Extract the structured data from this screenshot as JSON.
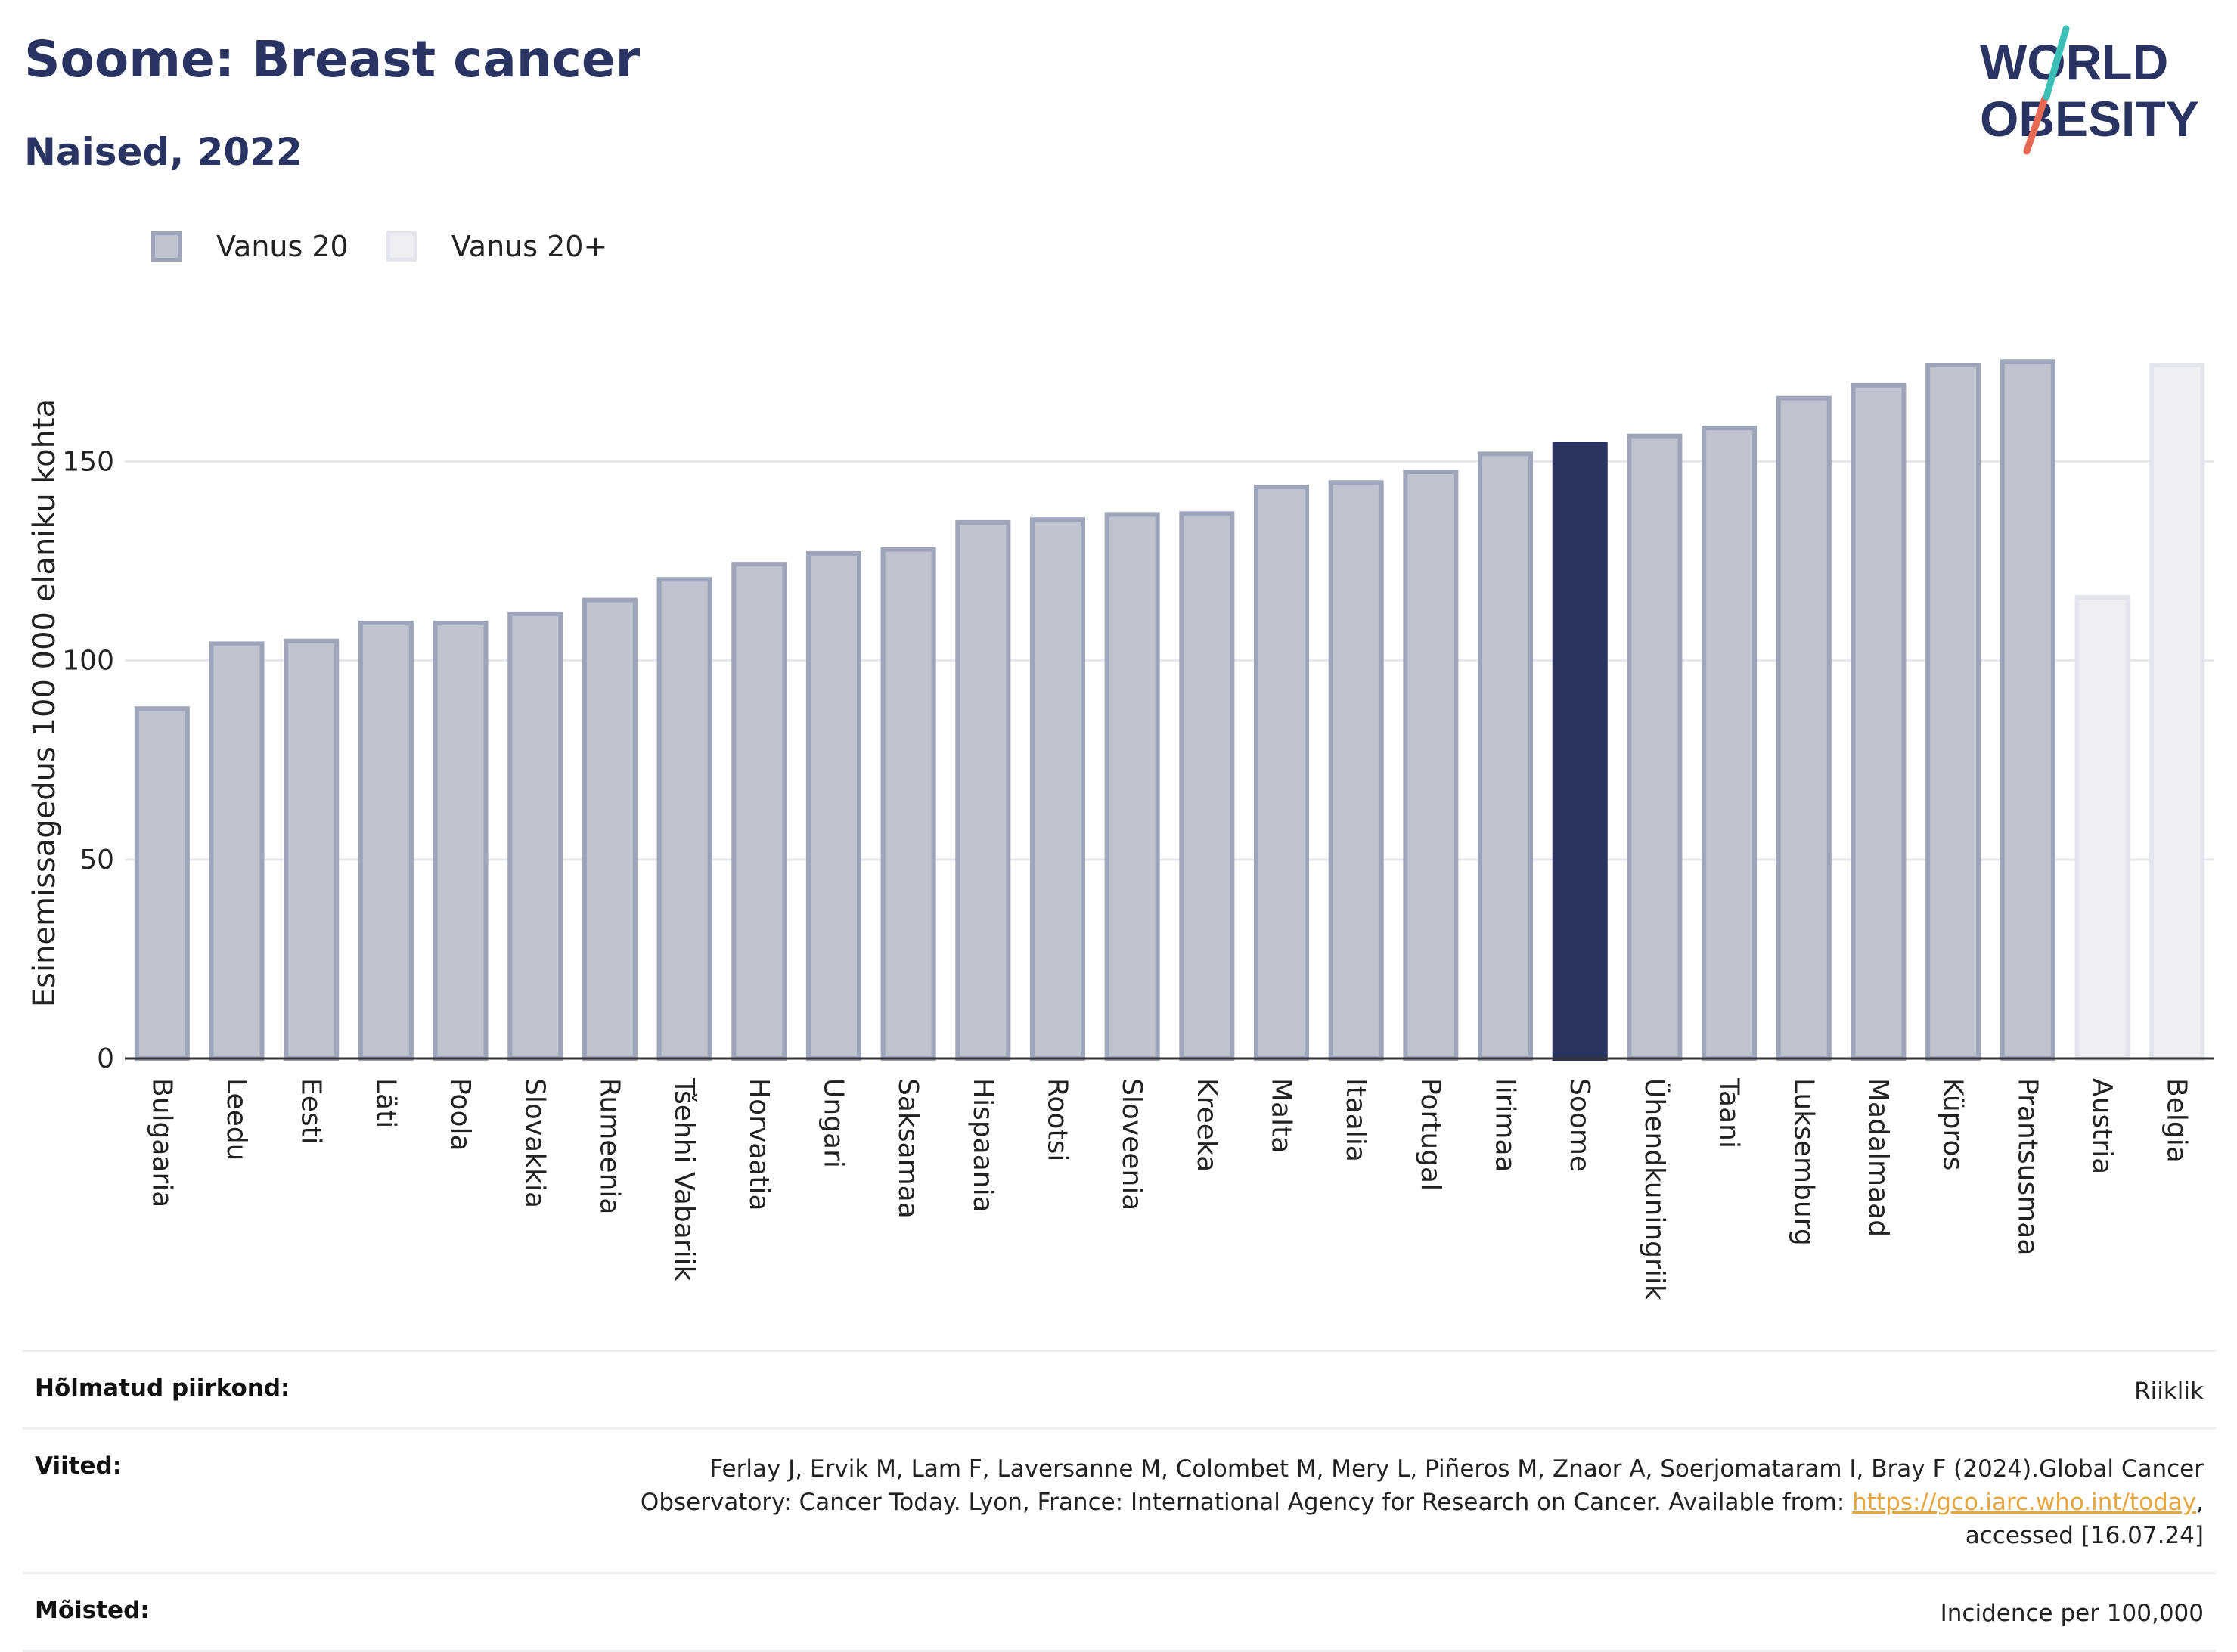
{
  "header": {
    "title": "Soome: Breast cancer",
    "subtitle": "Naised, 2022"
  },
  "logo": {
    "line1": "WORLD",
    "line2": "OBESITY"
  },
  "legend": [
    {
      "label": "Vanus 20",
      "color": "#bfc3cf"
    },
    {
      "label": "Vanus 20+",
      "color": "#eeeff3"
    }
  ],
  "chart_data": {
    "type": "bar",
    "ylabel": "Esinemissagedus 100 000 elaniku kohta",
    "ylim": [
      0,
      190
    ],
    "yticks": [
      0,
      50,
      100,
      150
    ],
    "grid": true,
    "legend_position": "top-left",
    "highlight": "Soome",
    "colors": {
      "vanus20_fill": "#bfc3cf",
      "vanus20_border": "#9ea4b9",
      "vanus20plus_fill": "#eeeff3",
      "vanus20plus_border": "#e3e5ec",
      "highlight_fill": "#293560"
    },
    "categories": [
      "Bulgaaria",
      "Leedu",
      "Eesti",
      "Läti",
      "Poola",
      "Slovakkia",
      "Rumeenia",
      "Tšehhi Vabariik",
      "Horvaatia",
      "Ungari",
      "Saksamaa",
      "Hispaania",
      "Rootsi",
      "Sloveenia",
      "Kreeka",
      "Malta",
      "Itaalia",
      "Portugal",
      "Iirimaa",
      "Soome",
      "Ühendkuningriik",
      "Taani",
      "Luksemburg",
      "Madalmaad",
      "Küpros",
      "Prantsusmaa",
      "Austria",
      "Belgia"
    ],
    "values": [
      88.5,
      104.8,
      105.5,
      110.0,
      110.0,
      112.3,
      115.8,
      121.0,
      124.8,
      127.5,
      128.5,
      135.3,
      136.0,
      137.3,
      137.5,
      144.2,
      145.3,
      148.0,
      152.5,
      155.0,
      157.0,
      159.0,
      166.5,
      169.7,
      174.8,
      175.7,
      116.5,
      174.8
    ],
    "groups": [
      "Vanus 20",
      "Vanus 20",
      "Vanus 20",
      "Vanus 20",
      "Vanus 20",
      "Vanus 20",
      "Vanus 20",
      "Vanus 20",
      "Vanus 20",
      "Vanus 20",
      "Vanus 20",
      "Vanus 20",
      "Vanus 20",
      "Vanus 20",
      "Vanus 20",
      "Vanus 20",
      "Vanus 20",
      "Vanus 20",
      "Vanus 20",
      "Vanus 20",
      "Vanus 20",
      "Vanus 20",
      "Vanus 20",
      "Vanus 20",
      "Vanus 20",
      "Vanus 20",
      "Vanus 20+",
      "Vanus 20+"
    ]
  },
  "footer": {
    "rows": [
      {
        "key": "Hõlmatud piirkond:",
        "value": "Riiklik"
      },
      {
        "key": "Viited:",
        "value_before": "Ferlay J, Ervik M, Lam F, Laversanne M, Colombet M, Mery L, Piñeros M, Znaor A, Soerjomataram I, Bray F (2024).Global Cancer Observatory: Cancer Today. Lyon, France: International Agency for Research on Cancer. Available from: ",
        "link": "https://gco.iarc.who.int/today",
        "value_after": ", accessed [16.07.24]"
      },
      {
        "key": "Mõisted:",
        "value": "Incidence per 100,000"
      }
    ]
  }
}
